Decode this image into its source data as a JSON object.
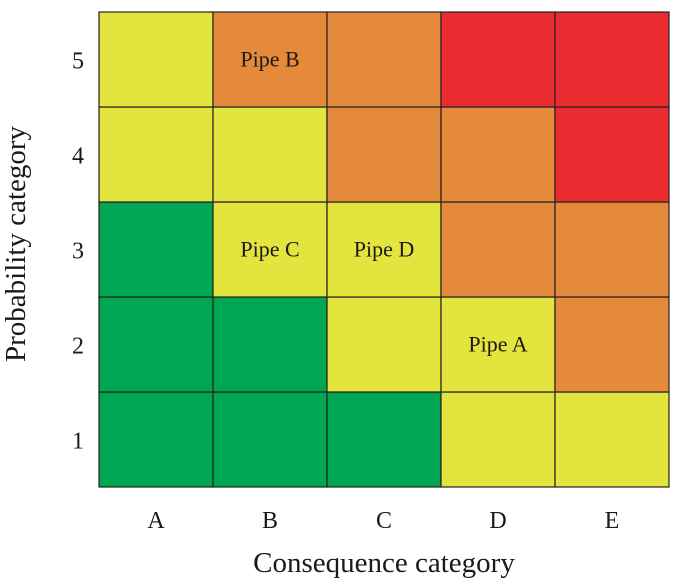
{
  "chart_data": {
    "type": "heatmap",
    "title": "",
    "xlabel": "Consequence category",
    "ylabel": "Probability category",
    "x_categories": [
      "A",
      "B",
      "C",
      "D",
      "E"
    ],
    "y_categories": [
      "1",
      "2",
      "3",
      "4",
      "5"
    ],
    "legend": "none",
    "colors": {
      "green": "#00a651",
      "yellow": "#e3e43d",
      "orange": "#e58a3a",
      "red": "#ea2c30"
    },
    "cells": [
      [
        "green",
        "green",
        "green",
        "yellow",
        "yellow"
      ],
      [
        "green",
        "green",
        "yellow",
        "yellow",
        "orange"
      ],
      [
        "green",
        "yellow",
        "yellow",
        "orange",
        "orange"
      ],
      [
        "yellow",
        "yellow",
        "orange",
        "orange",
        "red"
      ],
      [
        "yellow",
        "orange",
        "orange",
        "red",
        "red"
      ]
    ],
    "annotations": [
      {
        "x": "D",
        "y": "2",
        "text": "Pipe A"
      },
      {
        "x": "B",
        "y": "5",
        "text": "Pipe B"
      },
      {
        "x": "B",
        "y": "3",
        "text": "Pipe C"
      },
      {
        "x": "C",
        "y": "3",
        "text": "Pipe D"
      }
    ]
  }
}
